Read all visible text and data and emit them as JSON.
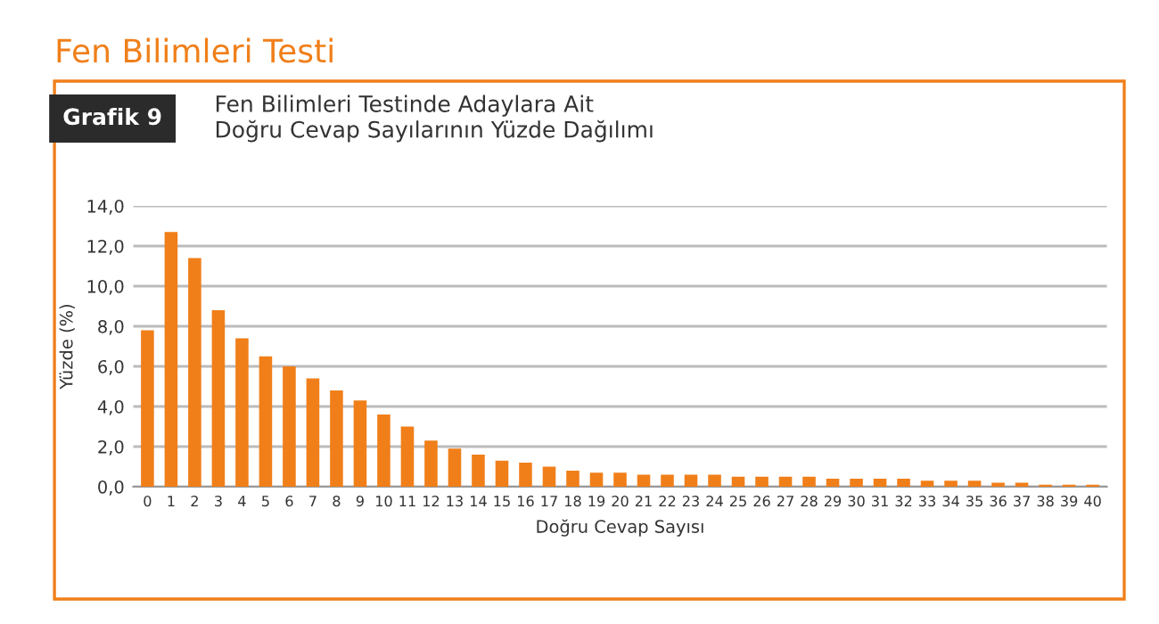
{
  "chart_data": {
    "type": "bar",
    "title": "Fen Bilimleri Testinde Adaylara Ait\nDoğru Cevap Sayılarının Yüzde Dağılımı",
    "annotations": [
      "Fen Bilimleri Testi",
      "Grafik 9"
    ],
    "xlabel": "Doğru Cevap Sayısı",
    "ylabel": "Yüzde (%)",
    "categories": [
      "0",
      "1",
      "2",
      "3",
      "4",
      "5",
      "6",
      "7",
      "8",
      "9",
      "10",
      "11",
      "12",
      "13",
      "14",
      "15",
      "16",
      "17",
      "18",
      "19",
      "20",
      "21",
      "22",
      "23",
      "24",
      "25",
      "26",
      "27",
      "28",
      "29",
      "30",
      "31",
      "32",
      "33",
      "34",
      "35",
      "36",
      "37",
      "38",
      "39",
      "40"
    ],
    "values": [
      7.8,
      12.7,
      11.4,
      8.8,
      7.4,
      6.5,
      6.0,
      5.4,
      4.8,
      4.3,
      3.6,
      3.0,
      2.3,
      1.9,
      1.6,
      1.3,
      1.2,
      1.0,
      0.8,
      0.7,
      0.7,
      0.6,
      0.6,
      0.6,
      0.6,
      0.5,
      0.5,
      0.5,
      0.5,
      0.4,
      0.4,
      0.4,
      0.4,
      0.3,
      0.3,
      0.3,
      0.2,
      0.2,
      0.1,
      0.1,
      0.1
    ],
    "color": "#f07f1a",
    "ylim": [
      0,
      14
    ],
    "yticks": [
      {
        "value": 0,
        "label": "0,0"
      },
      {
        "value": 2,
        "label": "2,0"
      },
      {
        "value": 4,
        "label": "4,0"
      },
      {
        "value": 6,
        "label": "6,0"
      },
      {
        "value": 8,
        "label": "8,0"
      },
      {
        "value": 10,
        "label": "10,0"
      },
      {
        "value": 12,
        "label": "12,0"
      },
      {
        "value": 14,
        "label": "14,0"
      }
    ],
    "grid": "y"
  }
}
